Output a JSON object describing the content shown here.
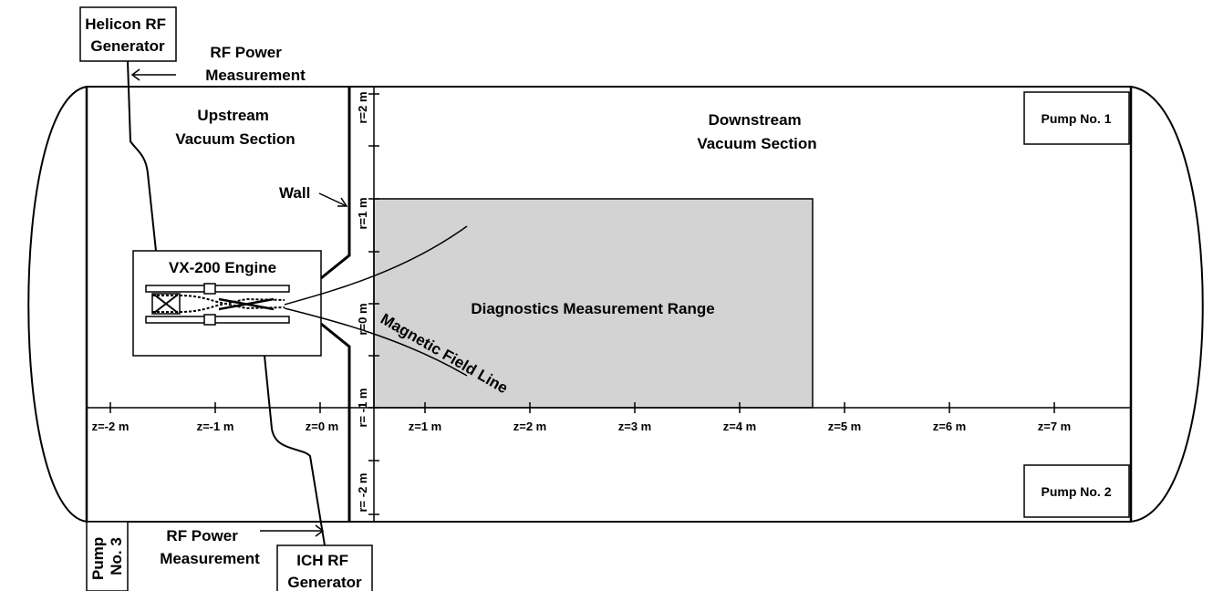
{
  "labels": {
    "helicon_generator": [
      "Helicon RF",
      "Generator"
    ],
    "rf_power_top": [
      "RF Power",
      "Measurement"
    ],
    "upstream": [
      "Upstream",
      "Vacuum Section"
    ],
    "downstream": [
      "Downstream",
      "Vacuum Section"
    ],
    "pump1": "Pump No. 1",
    "pump2": "Pump No. 2",
    "pump3": [
      "Pump",
      "No. 3"
    ],
    "wall": "Wall",
    "engine": "VX-200 Engine",
    "diagnostics": "Diagnostics Measurement Range",
    "field_line": "Magnetic Field Line",
    "rf_power_bottom": [
      "RF Power",
      "Measurement"
    ],
    "ich_generator": [
      "ICH RF",
      "Generator"
    ]
  },
  "z_axis": [
    "z=-2 m",
    "z=-1 m",
    "z=0 m",
    "z=1 m",
    "z=2 m",
    "z=3 m",
    "z=4 m",
    "z=5 m",
    "z=6 m",
    "z=7 m"
  ],
  "r_axis": [
    "r=2 m",
    "r=1 m",
    "r=0 m",
    "r= -1 m",
    "r= -2 m"
  ],
  "colors": {
    "line": "#000000",
    "diagnostics_fill": "#d3d3d3",
    "background": "#ffffff"
  }
}
